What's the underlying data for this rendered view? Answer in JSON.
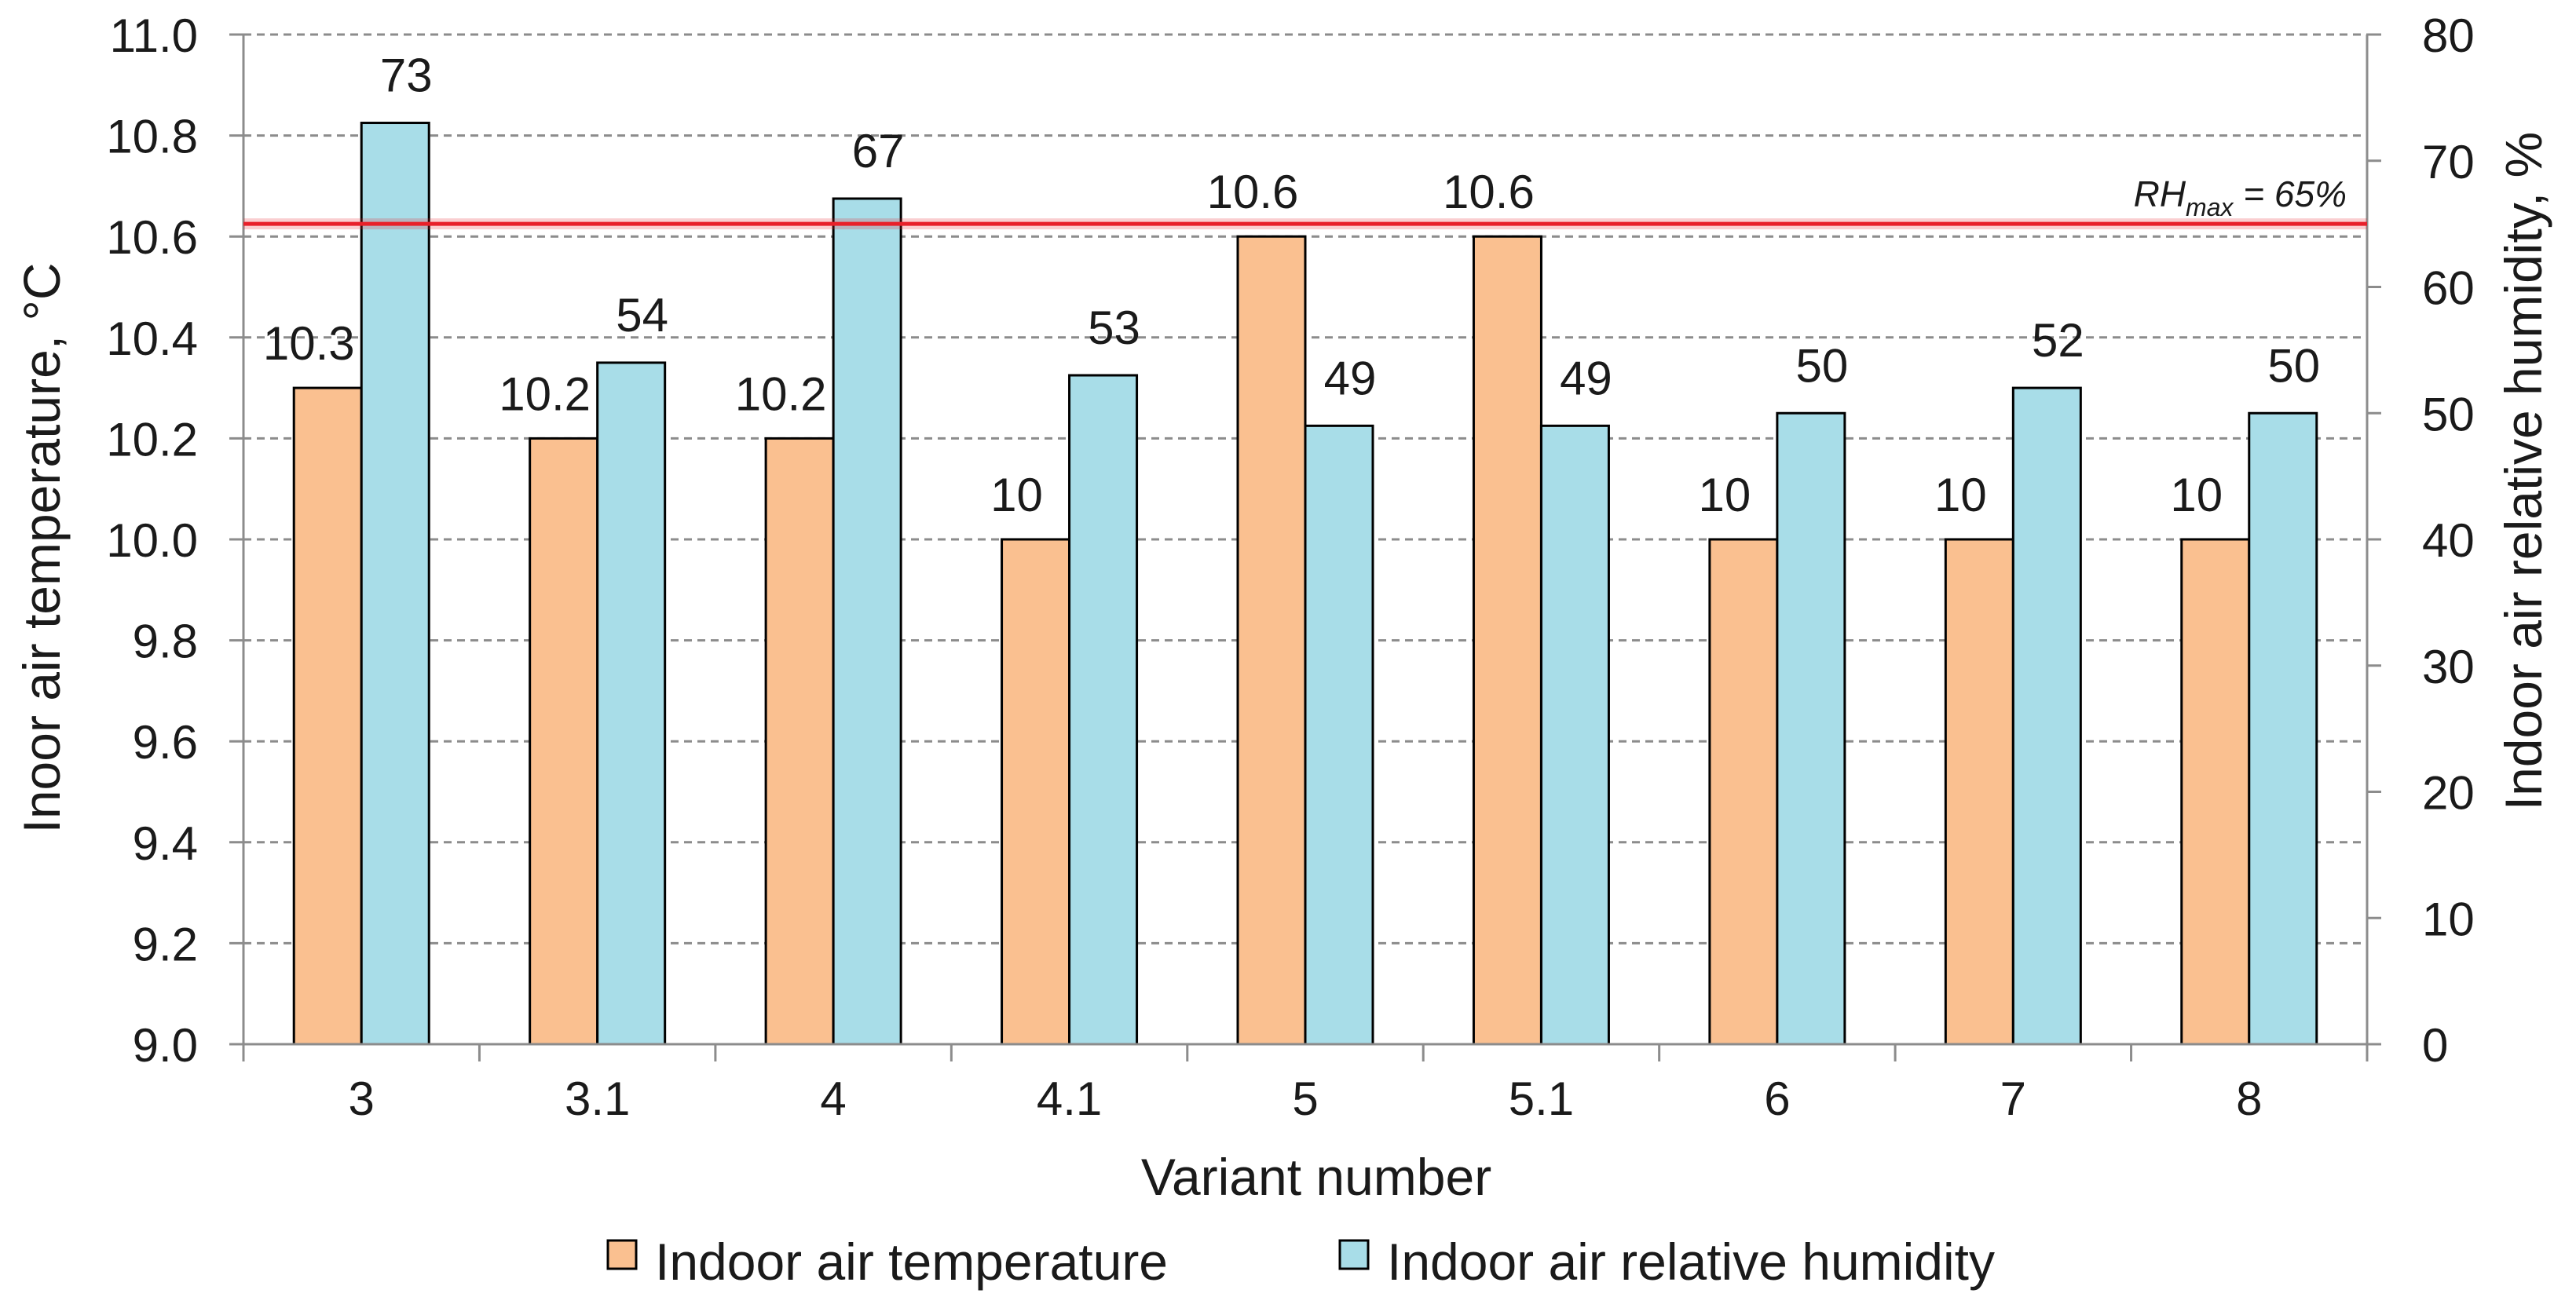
{
  "chart_data": {
    "type": "bar",
    "categories": [
      "3",
      "3.1",
      "4",
      "4.1",
      "5",
      "5.1",
      "6",
      "7",
      "8"
    ],
    "series": [
      {
        "name": "Indoor air temperature",
        "axis": "left",
        "color": "#FAC090",
        "values": [
          10.3,
          10.2,
          10.2,
          10.0,
          10.6,
          10.6,
          10.0,
          10.0,
          10.0
        ],
        "labels": [
          "10.3",
          "10.2",
          "10.2",
          "10",
          "10.6",
          "10.6",
          "10",
          "10",
          "10"
        ]
      },
      {
        "name": "Indoor air relative humidity",
        "axis": "right",
        "color": "#A8DDE8",
        "values": [
          73,
          54,
          67,
          53,
          49,
          49,
          50,
          52,
          50
        ],
        "labels": [
          "73",
          "54",
          "67",
          "53",
          "49",
          "49",
          "50",
          "52",
          "50"
        ]
      }
    ],
    "xlabel": "Variant number",
    "ylabel_left": "Inoor air temperature, °C",
    "ylabel_right": "Indoor air relative humidity, %",
    "ylim_left": [
      9.0,
      11.0
    ],
    "ylim_right": [
      0,
      80
    ],
    "yticks_left": [
      "9.0",
      "9.2",
      "9.4",
      "9.6",
      "9.8",
      "10.0",
      "10.2",
      "10.4",
      "10.6",
      "10.8",
      "11.0"
    ],
    "yticks_right": [
      "0",
      "10",
      "20",
      "30",
      "40",
      "50",
      "60",
      "70",
      "80"
    ],
    "reference_line": {
      "axis": "right",
      "value": 65,
      "color": "#E8202A",
      "label_main": "RH",
      "label_sub": "max",
      "label_rest": " = 65%"
    },
    "grid": true,
    "legend_position": "bottom"
  }
}
